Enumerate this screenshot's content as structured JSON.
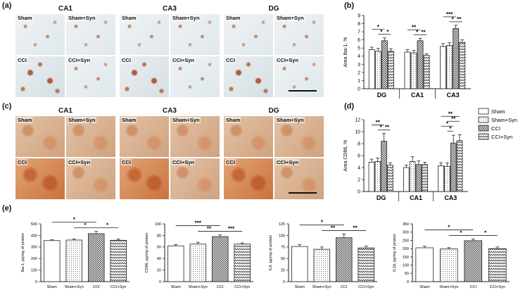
{
  "panels": {
    "a": "(a)",
    "b": "(b)",
    "c": "(c)",
    "d": "(d)",
    "e": "(e)"
  },
  "micrographs": {
    "regions": [
      "CA1",
      "CA3",
      "DG"
    ],
    "tiles": [
      "Sham",
      "Sham+Syn",
      "CCI",
      "CCI+Syn"
    ]
  },
  "colors": {
    "bar_fill": "#ffffff",
    "bar_stroke": "#222222",
    "dots": "#777777",
    "check": "#444444",
    "stain_iba": "#b05a28",
    "stain_cd86": "#c9733f"
  },
  "chart_data": [
    {
      "id": "b",
      "type": "bar",
      "ylabel": "Area Iba-1, %",
      "ylim": [
        0,
        9
      ],
      "yticks": [
        0,
        1,
        2,
        3,
        4,
        5,
        6,
        7,
        8,
        9
      ],
      "groups": [
        "DG",
        "CA1",
        "CA3"
      ],
      "series": [
        {
          "name": "Sham",
          "pattern": "white",
          "values": [
            4.8,
            4.5,
            5.2
          ],
          "errors": [
            0.3,
            0.3,
            0.35
          ]
        },
        {
          "name": "Sham+Syn",
          "pattern": "dots",
          "values": [
            4.6,
            4.4,
            5.3
          ],
          "errors": [
            0.35,
            0.3,
            0.35
          ]
        },
        {
          "name": "CCI",
          "pattern": "check",
          "values": [
            5.9,
            5.9,
            7.4
          ],
          "errors": [
            0.35,
            0.3,
            0.4
          ]
        },
        {
          "name": "CCI+Syn",
          "pattern": "zigzag",
          "values": [
            4.6,
            4.1,
            5.7
          ],
          "errors": [
            0.3,
            0.2,
            0.3
          ]
        }
      ],
      "significance": [
        {
          "group": 0,
          "from": 0,
          "to": 2,
          "label": "*",
          "level": 2
        },
        {
          "group": 0,
          "from": 1,
          "to": 2,
          "label": "*",
          "level": 1
        },
        {
          "group": 0,
          "from": 2,
          "to": 3,
          "label": "*",
          "level": 1
        },
        {
          "group": 1,
          "from": 0,
          "to": 2,
          "label": "**",
          "level": 2
        },
        {
          "group": 1,
          "from": 1,
          "to": 2,
          "label": "*",
          "level": 1
        },
        {
          "group": 1,
          "from": 2,
          "to": 3,
          "label": "**",
          "level": 1
        },
        {
          "group": 2,
          "from": 0,
          "to": 2,
          "label": "***",
          "level": 2
        },
        {
          "group": 2,
          "from": 1,
          "to": 2,
          "label": "*",
          "level": 1
        },
        {
          "group": 2,
          "from": 2,
          "to": 3,
          "label": "**",
          "level": 1
        }
      ]
    },
    {
      "id": "d",
      "type": "bar",
      "ylabel": "Area CD86, %",
      "ylim": [
        0,
        12
      ],
      "yticks": [
        0,
        2,
        4,
        6,
        8,
        10,
        12
      ],
      "groups": [
        "DG",
        "CA1",
        "CA3"
      ],
      "legend": [
        "Sham",
        "Sham+Syn",
        "CCI",
        "CCI+Syn"
      ],
      "series": [
        {
          "name": "Sham",
          "pattern": "white",
          "values": [
            4.9,
            4.0,
            4.3
          ],
          "errors": [
            0.5,
            0.4,
            0.5
          ]
        },
        {
          "name": "Sham+Syn",
          "pattern": "dots",
          "values": [
            5.0,
            5.0,
            4.2
          ],
          "errors": [
            0.6,
            0.8,
            0.6
          ]
        },
        {
          "name": "CCI",
          "pattern": "check",
          "values": [
            8.4,
            4.5,
            8.1
          ],
          "errors": [
            1.3,
            0.6,
            1.3
          ]
        },
        {
          "name": "CCI+Syn",
          "pattern": "zigzag",
          "values": [
            4.4,
            4.5,
            8.5
          ],
          "errors": [
            0.4,
            0.4,
            1.0
          ]
        }
      ],
      "significance": [
        {
          "group": 0,
          "from": 0,
          "to": 2,
          "label": "**",
          "level": 2
        },
        {
          "group": 0,
          "from": 1,
          "to": 2,
          "label": "*",
          "level": 1
        },
        {
          "group": 0,
          "from": 2,
          "to": 3,
          "label": "**",
          "level": 1
        },
        {
          "group": 2,
          "from": 0,
          "to": 3,
          "label": "**",
          "level": 4
        },
        {
          "group": 2,
          "from": 1,
          "to": 3,
          "label": "**",
          "level": 3
        },
        {
          "group": 2,
          "from": 0,
          "to": 2,
          "label": "*",
          "level": 2
        },
        {
          "group": 2,
          "from": 1,
          "to": 2,
          "label": "*",
          "level": 1
        }
      ]
    },
    {
      "id": "e1",
      "type": "bar",
      "ylabel": "Iba-1, pg/mg of protein",
      "ylim": [
        0,
        500
      ],
      "yticks": [
        0,
        100,
        200,
        300,
        400,
        500
      ],
      "categories": [
        "Sham",
        "Sham+Syn",
        "CCI",
        "CCI+Syn"
      ],
      "values": [
        355,
        360,
        415,
        358
      ],
      "errors": [
        8,
        10,
        20,
        10
      ],
      "significance": [
        {
          "from": 0,
          "to": 2,
          "label": "*",
          "level": 2
        },
        {
          "from": 1,
          "to": 2,
          "label": "*",
          "level": 1
        },
        {
          "from": 2,
          "to": 3,
          "label": "*",
          "level": 1
        }
      ]
    },
    {
      "id": "e2",
      "type": "bar",
      "ylabel": "CD86, pg/mg of protein",
      "ylim": [
        0,
        100
      ],
      "yticks": [
        0,
        20,
        40,
        60,
        80,
        100
      ],
      "categories": [
        "Sham",
        "Sham+Syn",
        "CCI",
        "CCI+Syn"
      ],
      "values": [
        62,
        65,
        78,
        65
      ],
      "errors": [
        2,
        3,
        3,
        2
      ],
      "significance": [
        {
          "from": 0,
          "to": 2,
          "label": "***",
          "level": 2
        },
        {
          "from": 1,
          "to": 2,
          "label": "**",
          "level": 1
        },
        {
          "from": 2,
          "to": 3,
          "label": "***",
          "level": 1
        }
      ]
    },
    {
      "id": "e3",
      "type": "bar",
      "ylabel": "IL6, pg/mg of protein",
      "ylim": [
        0,
        125
      ],
      "yticks": [
        0,
        25,
        50,
        75,
        100,
        125
      ],
      "categories": [
        "Sham",
        "Sham+Syn",
        "CCI",
        "CCI+Syn"
      ],
      "values": [
        76,
        70,
        95,
        73
      ],
      "errors": [
        4,
        5,
        8,
        4
      ],
      "significance": [
        {
          "from": 0,
          "to": 2,
          "label": "*",
          "level": 2
        },
        {
          "from": 1,
          "to": 2,
          "label": "**",
          "level": 1
        },
        {
          "from": 2,
          "to": 3,
          "label": "**",
          "level": 1
        }
      ]
    },
    {
      "id": "e4",
      "type": "bar",
      "ylabel": "IL1β, pg/mg of protein",
      "ylim": [
        0,
        350
      ],
      "yticks": [
        0,
        50,
        100,
        150,
        200,
        250,
        300,
        350
      ],
      "categories": [
        "Sham",
        "Sham+Syn",
        "CCI",
        "CCI+Syn"
      ],
      "values": [
        205,
        198,
        248,
        200
      ],
      "errors": [
        10,
        8,
        10,
        10
      ],
      "significance": [
        {
          "from": 0,
          "to": 2,
          "label": "*",
          "level": 2
        },
        {
          "from": 1,
          "to": 2,
          "label": "*",
          "level": 1
        },
        {
          "from": 2,
          "to": 3,
          "label": "*",
          "level": 1
        }
      ]
    }
  ]
}
